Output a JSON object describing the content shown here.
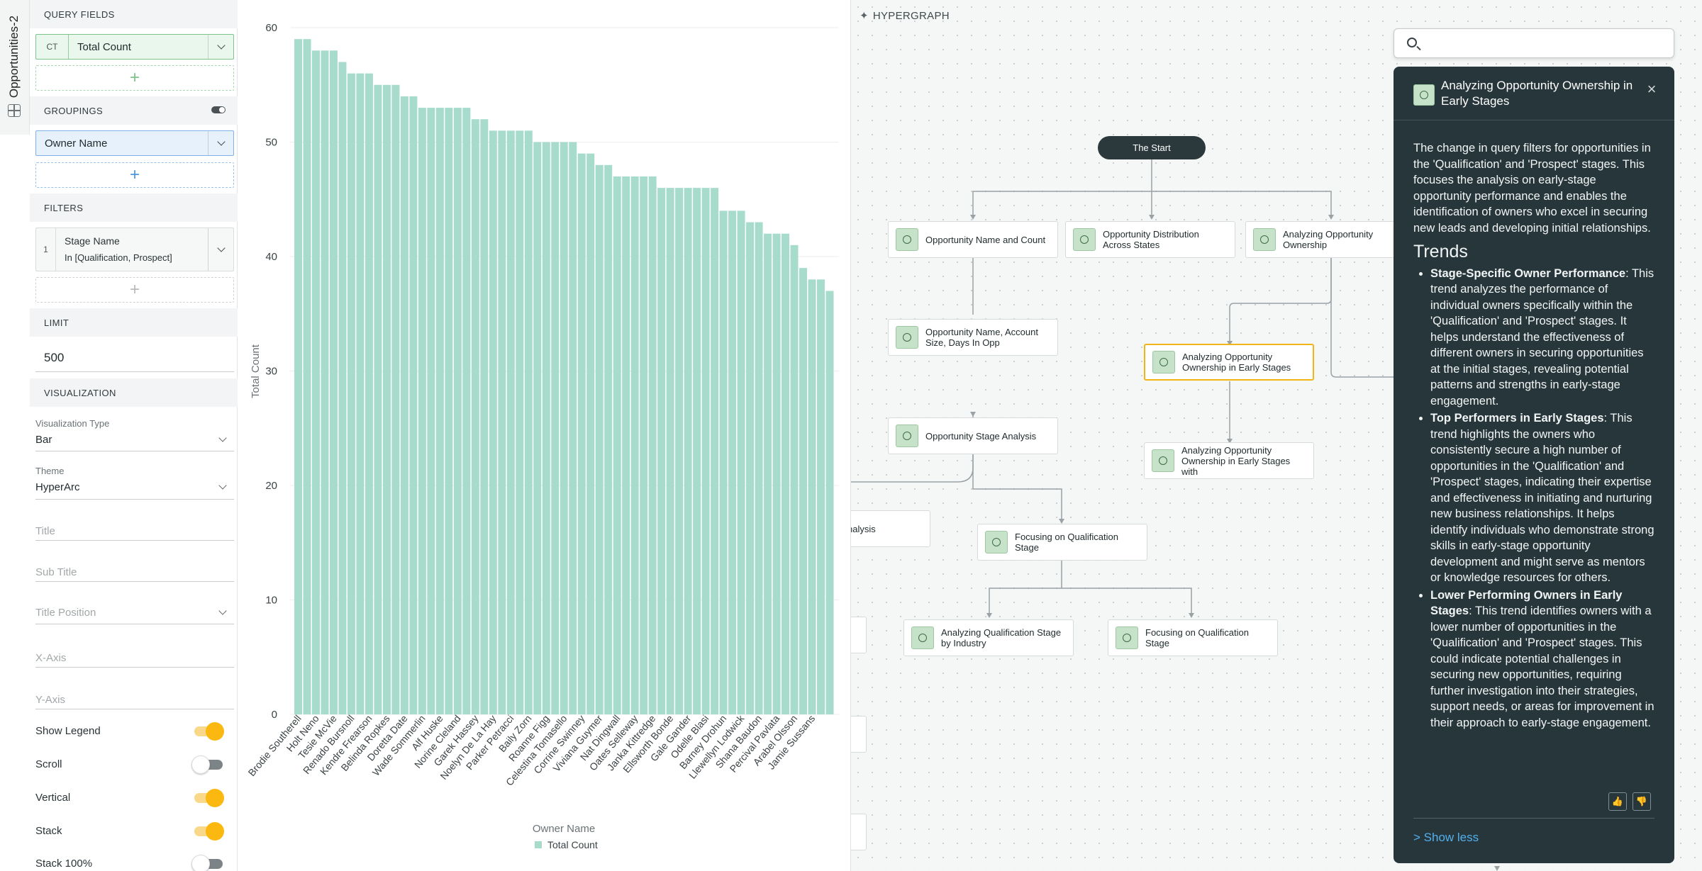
{
  "rail": {
    "title": "Opportunities-2",
    "icon": "grid-icon"
  },
  "config": {
    "query_fields": {
      "header": "QUERY FIELDS",
      "field": {
        "tag": "CT",
        "label": "Total Count"
      },
      "add": "+"
    },
    "groupings": {
      "header": "GROUPINGS",
      "field": {
        "label": "Owner Name"
      },
      "add": "+"
    },
    "filters": {
      "header": "FILTERS",
      "items": [
        {
          "index": "1",
          "name": "Stage Name",
          "value": "In [Qualification, Prospect]"
        }
      ],
      "add": "+"
    },
    "limit": {
      "header": "LIMIT",
      "value": "500"
    },
    "visualization": {
      "header": "VISUALIZATION",
      "type_label": "Visualization Type",
      "type_value": "Bar",
      "theme_label": "Theme",
      "theme_value": "HyperArc",
      "title_ph": "Title",
      "subtitle_ph": "Sub Title",
      "title_position_ph": "Title Position",
      "xaxis_ph": "X-Axis",
      "yaxis_ph": "Y-Axis",
      "switches": [
        {
          "label": "Show Legend",
          "on": true
        },
        {
          "label": "Scroll",
          "on": false
        },
        {
          "label": "Vertical",
          "on": true
        },
        {
          "label": "Stack",
          "on": true
        },
        {
          "label": "Stack 100%",
          "on": false
        }
      ]
    }
  },
  "chart_data": {
    "type": "bar",
    "xlabel": "Owner Name",
    "ylabel": "Total Count",
    "ylim": [
      0,
      60
    ],
    "yticks": [
      0,
      10,
      20,
      30,
      40,
      50,
      60
    ],
    "legend": "Total Count",
    "bar_color": "#a7dccd",
    "series": [
      {
        "name": "Total Count",
        "values": [
          59,
          59,
          58,
          58,
          58,
          57,
          56,
          56,
          56,
          55,
          55,
          55,
          54,
          54,
          53,
          53,
          53,
          53,
          53,
          53,
          52,
          52,
          51,
          51,
          51,
          51,
          51,
          50,
          50,
          50,
          50,
          50,
          49,
          49,
          48,
          48,
          47,
          47,
          47,
          47,
          47,
          46,
          46,
          46,
          46,
          46,
          46,
          46,
          44,
          44,
          44,
          43,
          43,
          42,
          42,
          42,
          41,
          39,
          38,
          38,
          37
        ]
      }
    ],
    "tick_labels": [
      "Brodie Southerell",
      "Holt Neno",
      "Tesie McVie",
      "Renado Bursnoll",
      "Kendre Frearson",
      "Belinda Ropkes",
      "Doretta Date",
      "Wade Sommerlin",
      "Alf Huske",
      "Norine Cleland",
      "Garek Hassey",
      "Noelyn De La Hay",
      "Parker Petracci",
      "Baily Zorn",
      "Roanne Figg",
      "Celestina Tomasello",
      "Corrine Swinney",
      "Viviana Guymer",
      "Nat Dingwall",
      "Oates Selleway",
      "Janka Kittredge",
      "Ellsworth Bonde",
      "Gale Gander",
      "Odelle Blasi",
      "Barney Drohun",
      "Llewellyn Lodwick",
      "Shana Baudon",
      "Percival Pavlata",
      "Arabel Olsson",
      "Jamie Sussans"
    ]
  },
  "graph": {
    "title": "HYPERGRAPH",
    "start": "The Start",
    "nodes": [
      {
        "id": "n1",
        "label": "Opportunity Name and Count"
      },
      {
        "id": "n2",
        "label": "Opportunity Distribution Across States"
      },
      {
        "id": "n3",
        "label": "Analyzing Opportunity Ownership"
      },
      {
        "id": "n4",
        "label": "Opportunity Name, Account Size, Days In Opp"
      },
      {
        "id": "n5",
        "label": "Analyzing Opportunity Ownership in Early Stages"
      },
      {
        "id": "n6",
        "label": "Opportunity Stage Analysis"
      },
      {
        "id": "n7",
        "label": "Analyzing Opportunity Ownership in Early Stages with"
      },
      {
        "id": "n8",
        "label": "nalysis"
      },
      {
        "id": "n9",
        "label": "Focusing on Qualification Stage"
      },
      {
        "id": "n10",
        "label": "Analyzing Qualification Stage by Industry"
      },
      {
        "id": "n11",
        "label": "Focusing on Qualification Stage"
      }
    ]
  },
  "search": {
    "placeholder": ""
  },
  "insight": {
    "title": "Analyzing Opportunity Ownership in Early Stages",
    "intro": "The change in query filters for opportunities in the 'Qualification' and 'Prospect' stages. This focuses the analysis on early-stage opportunity performance and enables the identification of owners who excel in securing new leads and developing initial relationships.",
    "trends_heading": "Trends",
    "trends": [
      {
        "title": "Stage-Specific Owner Performance",
        "text": ": This trend analyzes the performance of individual owners specifically within the 'Qualification' and 'Prospect' stages. It helps understand the effectiveness of different owners in securing opportunities at the initial stages, revealing potential patterns and strengths in early-stage engagement."
      },
      {
        "title": "Top Performers in Early Stages",
        "text": ": This trend highlights the owners who consistently secure a high number of opportunities in the 'Qualification' and 'Prospect' stages, indicating their expertise and effectiveness in initiating and nurturing new business relationships. It helps identify individuals who demonstrate strong skills in early-stage opportunity development and might serve as mentors or knowledge resources for others."
      },
      {
        "title": "Lower Performing Owners in Early Stages",
        "text": ": This trend identifies owners with a lower number of opportunities in the 'Qualification' and 'Prospect' stages. This could indicate potential challenges in securing new opportunities, requiring further investigation into their strategies, support needs, or areas for improvement in their approach to early-stage engagement."
      }
    ],
    "show_less": "> Show less"
  }
}
